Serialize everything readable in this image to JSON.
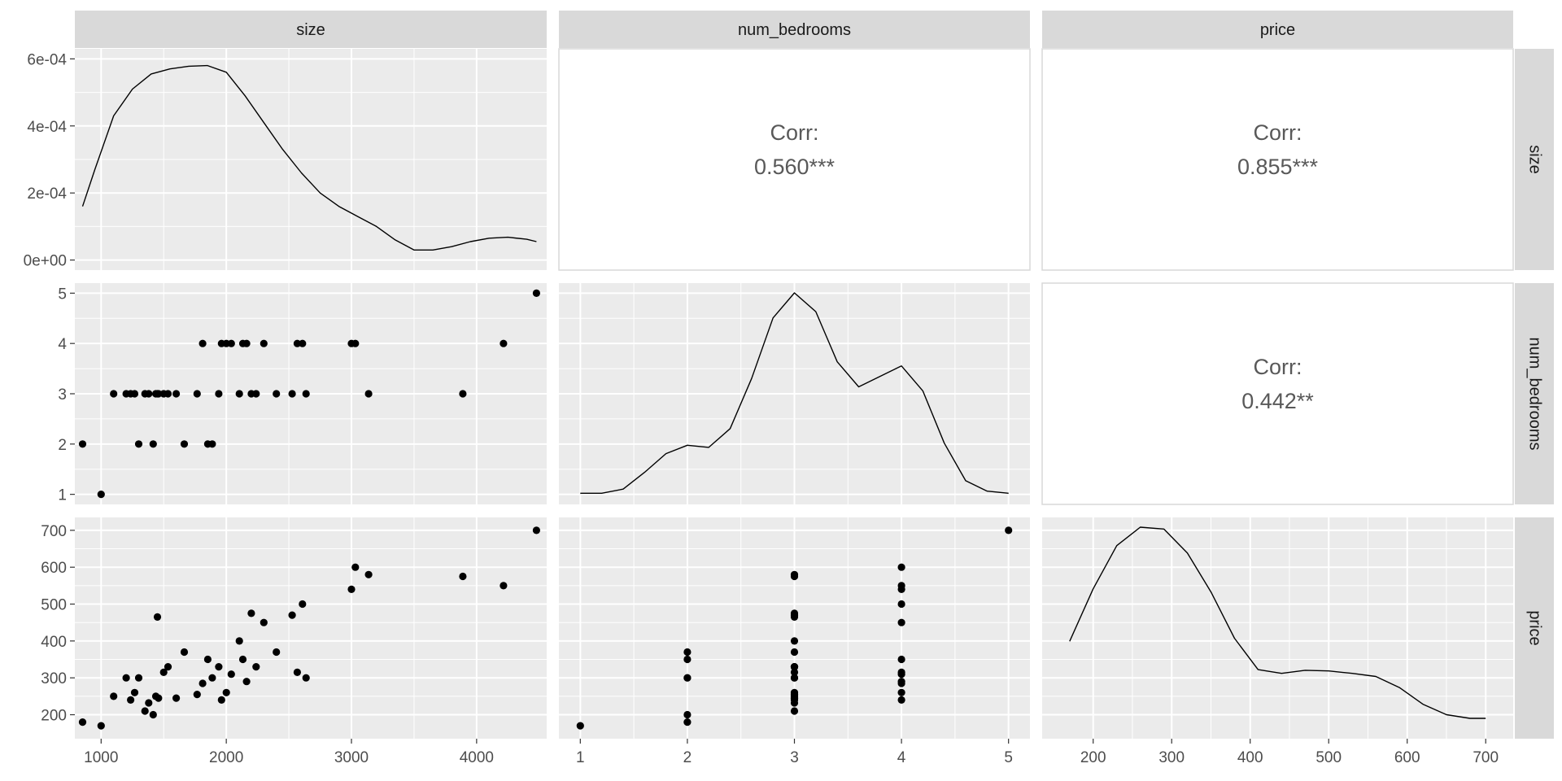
{
  "chart_data": {
    "type": "scatter",
    "kind": "pairs-plot",
    "variables": [
      "size",
      "num_bedrooms",
      "price"
    ],
    "colors": {
      "panel_bg": "#ebebeb",
      "strip_bg": "#d9d9d9",
      "grid": "#ffffff",
      "point": "#000000",
      "line": "#000000",
      "corr_text": "#595959"
    },
    "axes": {
      "size": {
        "range": [
          790,
          4560
        ],
        "ticks": [
          1000,
          2000,
          3000,
          4000
        ]
      },
      "num_bedrooms": {
        "range": [
          0.8,
          5.2
        ],
        "ticks": [
          1,
          2,
          3,
          4,
          5
        ]
      },
      "price": {
        "range": [
          135,
          735
        ],
        "ticks": [
          200,
          300,
          400,
          500,
          600,
          700
        ]
      }
    },
    "density_axis": {
      "range": [
        -3e-05,
        0.00063
      ],
      "ticks": [
        0,
        0.0002,
        0.0004,
        0.0006
      ],
      "tick_labels": [
        "0e+00",
        "2e-04",
        "4e-04",
        "6e-04"
      ]
    },
    "correlations": [
      {
        "row": "size",
        "col": "num_bedrooms",
        "label": "Corr:",
        "value": "0.560***"
      },
      {
        "row": "size",
        "col": "price",
        "label": "Corr:",
        "value": "0.855***"
      },
      {
        "row": "num_bedrooms",
        "col": "price",
        "label": "Corr:",
        "value": "0.442**"
      }
    ],
    "densities": {
      "size": {
        "x": [
          852,
          950,
          1100,
          1250,
          1400,
          1550,
          1700,
          1850,
          2000,
          2150,
          2300,
          2450,
          2600,
          2750,
          2900,
          3050,
          3200,
          3350,
          3500,
          3650,
          3800,
          3950,
          4100,
          4250,
          4400,
          4478
        ],
        "y": [
          0.00016,
          0.00027,
          0.00043,
          0.00051,
          0.000555,
          0.00057,
          0.000578,
          0.00058,
          0.00056,
          0.00049,
          0.00041,
          0.00033,
          0.00026,
          0.0002,
          0.00016,
          0.00013,
          0.0001,
          6e-05,
          3e-05,
          3e-05,
          4e-05,
          5.5e-05,
          6.5e-05,
          6.8e-05,
          6.2e-05,
          5.5e-05
        ]
      },
      "num_bedrooms": {
        "x": [
          1,
          1.2,
          1.4,
          1.6,
          1.8,
          2,
          2.2,
          2.4,
          2.6,
          2.8,
          3,
          3.2,
          3.4,
          3.6,
          3.8,
          4,
          4.2,
          4.4,
          4.6,
          4.8,
          5
        ],
        "y": [
          0.03,
          0.03,
          0.05,
          0.13,
          0.22,
          0.26,
          0.25,
          0.34,
          0.58,
          0.87,
          0.99,
          0.9,
          0.66,
          0.54,
          0.59,
          0.64,
          0.52,
          0.27,
          0.09,
          0.04,
          0.03
        ]
      },
      "price": {
        "x": [
          170,
          200,
          230,
          260,
          290,
          320,
          350,
          380,
          410,
          440,
          470,
          500,
          530,
          560,
          590,
          620,
          650,
          680,
          700
        ],
        "y": [
          0.0015,
          0.00235,
          0.00305,
          0.00335,
          0.00332,
          0.00293,
          0.0023,
          0.00155,
          0.00104,
          0.00098,
          0.00103,
          0.00102,
          0.00098,
          0.00093,
          0.00075,
          0.00048,
          0.00031,
          0.00025,
          0.00025
        ]
      }
    },
    "points": {
      "size": [
        852,
        1000,
        1100,
        1200,
        1236,
        1268,
        1300,
        1350,
        1380,
        1416,
        1437,
        1450,
        1458,
        1500,
        1534,
        1600,
        1664,
        1767,
        1811,
        1852,
        1888,
        1940,
        1962,
        2000,
        2040,
        2104,
        2132,
        2162,
        2200,
        2238,
        2300,
        2400,
        2526,
        2567,
        2609,
        2637,
        3000,
        3031,
        3137,
        3890,
        4215,
        4478
      ],
      "num_bedrooms": [
        2,
        1,
        3,
        3,
        3,
        3,
        2,
        3,
        3,
        2,
        3,
        3,
        3,
        3,
        3,
        3,
        2,
        3,
        4,
        2,
        2,
        3,
        4,
        4,
        4,
        3,
        4,
        4,
        3,
        3,
        4,
        3,
        3,
        4,
        4,
        3,
        4,
        4,
        3,
        3,
        4,
        5
      ],
      "price": [
        180,
        170,
        250,
        300,
        240,
        260,
        300,
        210,
        232,
        200,
        250,
        465,
        245,
        315,
        330,
        245,
        370,
        255,
        285,
        350,
        300,
        330,
        240,
        260,
        310,
        400,
        350,
        290,
        475,
        330,
        450,
        370,
        470,
        315,
        500,
        300,
        540,
        600,
        580,
        575,
        550,
        700
      ]
    }
  }
}
